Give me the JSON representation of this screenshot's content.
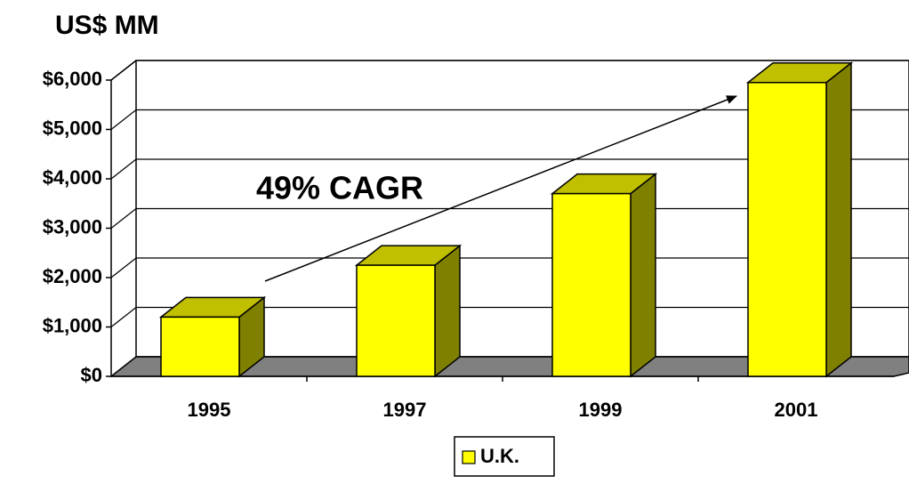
{
  "chart_data": {
    "type": "bar3d",
    "title": "US$ MM",
    "categories": [
      "1995",
      "1997",
      "1999",
      "2001"
    ],
    "series": [
      {
        "name": "U.K.",
        "color": "#ffff00",
        "values": [
          1200,
          2250,
          3700,
          5950
        ]
      }
    ],
    "ylim": [
      0,
      6000
    ],
    "yticks": [
      {
        "value": 0,
        "label": "$0"
      },
      {
        "value": 1000,
        "label": "$1,000"
      },
      {
        "value": 2000,
        "label": "$2,000"
      },
      {
        "value": 3000,
        "label": "$3,000"
      },
      {
        "value": 4000,
        "label": "$4,000"
      },
      {
        "value": 5000,
        "label": "$5,000"
      },
      {
        "value": 6000,
        "label": "$6,000"
      }
    ],
    "grid": true,
    "legend": "bottom",
    "annotation": "49% CAGR"
  }
}
